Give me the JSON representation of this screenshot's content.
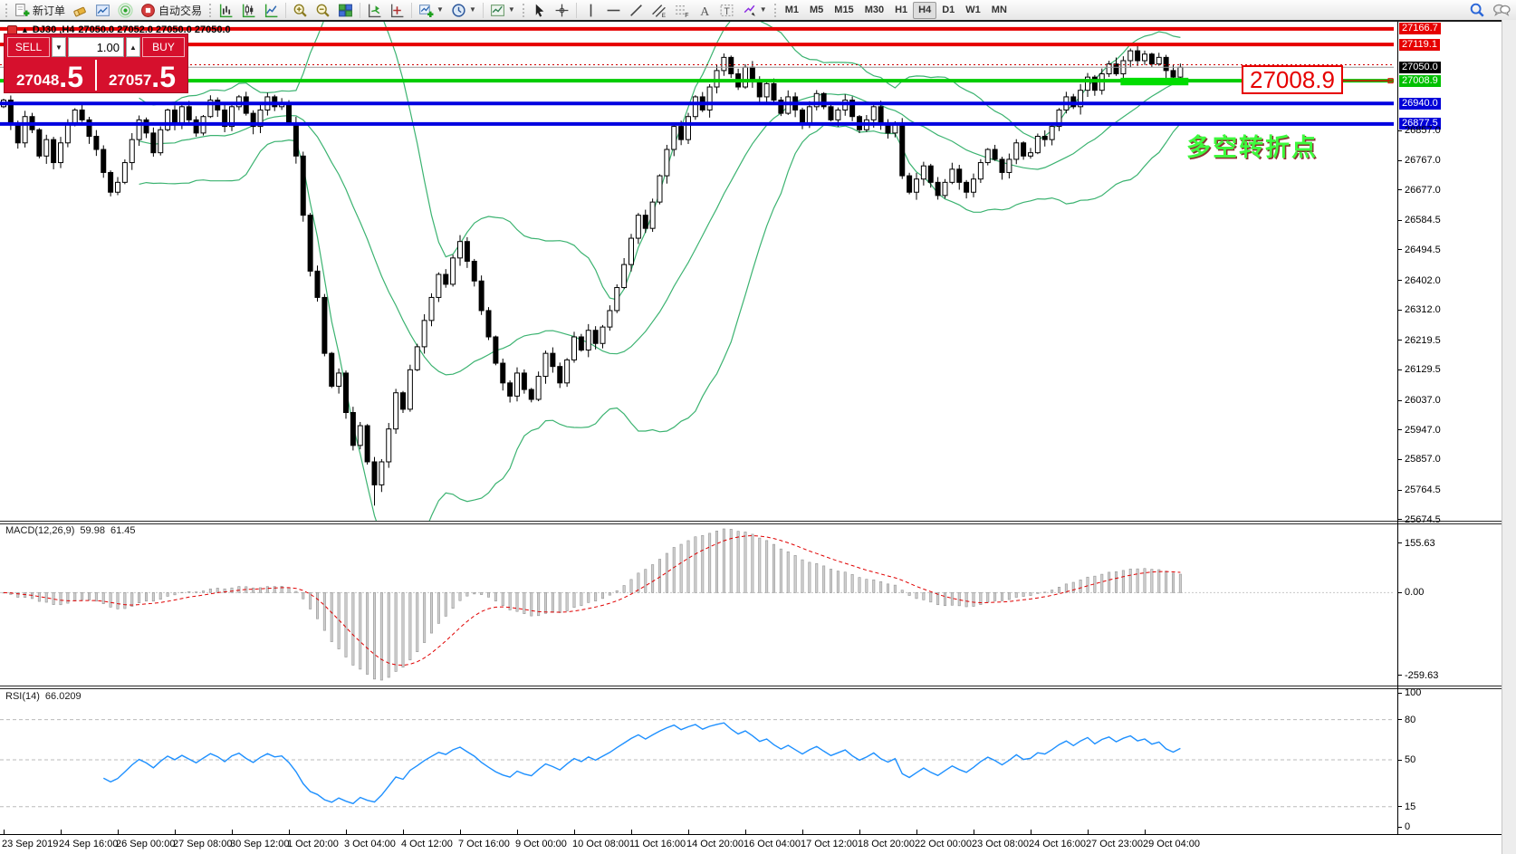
{
  "toolbar": {
    "new_order_label": "新订单",
    "autotrade_label": "自动交易",
    "timeframes": [
      "M1",
      "M5",
      "M15",
      "M30",
      "H1",
      "H4",
      "D1",
      "W1",
      "MN"
    ],
    "active_timeframe": "H4"
  },
  "chart": {
    "symbol_period": "DJ30 ,H4",
    "quotes": "27050.0 27052.0 27050.0 27050.0"
  },
  "order_panel": {
    "sell_label": "SELL",
    "buy_label": "BUY",
    "volume": "1.00",
    "sell_price": "27048",
    "sell_price_frac": ".5",
    "buy_price": "27057",
    "buy_price_frac": ".5"
  },
  "quote": {
    "last": "27050.0",
    "last_line_price": 27050.0,
    "ask_line_price": 27057.5
  },
  "price_axis": {
    "highlight_labels": [
      {
        "text": "27166.7",
        "price": 27166.7,
        "bg": "#e60000"
      },
      {
        "text": "27119.1",
        "price": 27119.1,
        "bg": "#e60000"
      },
      {
        "text": "27050.0",
        "price": 27050.0,
        "bg": "#000000"
      },
      {
        "text": "27008.9",
        "price": 27008.9,
        "bg": "#00c000"
      },
      {
        "text": "26940.0",
        "price": 26940.0,
        "bg": "#0000d8"
      },
      {
        "text": "26877.5",
        "price": 26877.5,
        "bg": "#0000d8"
      }
    ],
    "ticks": [
      {
        "text": "26857.0",
        "price": 26857.0
      },
      {
        "text": "26767.0",
        "price": 26767.0
      },
      {
        "text": "26677.0",
        "price": 26677.0
      },
      {
        "text": "26584.5",
        "price": 26584.5
      },
      {
        "text": "26494.5",
        "price": 26494.5
      },
      {
        "text": "26402.0",
        "price": 26402.0
      },
      {
        "text": "26312.0",
        "price": 26312.0
      },
      {
        "text": "26219.5",
        "price": 26219.5
      },
      {
        "text": "26129.5",
        "price": 26129.5
      },
      {
        "text": "26037.0",
        "price": 26037.0
      },
      {
        "text": "25947.0",
        "price": 25947.0
      },
      {
        "text": "25857.0",
        "price": 25857.0
      },
      {
        "text": "25764.5",
        "price": 25764.5
      },
      {
        "text": "25674.5",
        "price": 25674.5
      }
    ]
  },
  "hlines": [
    {
      "price": 27166.7,
      "color": "#e60000",
      "w": 4
    },
    {
      "price": 27119.1,
      "color": "#e60000",
      "w": 4
    },
    {
      "price": 27008.9,
      "color": "#00cc00",
      "w": 4
    },
    {
      "price": 26940.0,
      "color": "#0000e0",
      "w": 4
    },
    {
      "price": 26877.5,
      "color": "#0000e0",
      "w": 4
    }
  ],
  "annotations": {
    "price_callout": {
      "text": "27008.9",
      "price": 27008.9,
      "color": "#e60000"
    },
    "turning_point": {
      "text": "多空转折点",
      "color": "#3dfa3d"
    },
    "green_box": {
      "from_bar": 157,
      "to_bar": 166,
      "price_top": 27018,
      "price_bottom": 26995,
      "color": "#00dd00"
    }
  },
  "macd_panel": {
    "name": "MACD(12,26,9)",
    "value_main": "59.98",
    "value_signal": "61.45",
    "axis_labels": [
      {
        "text": "155.63",
        "value": 155.63
      },
      {
        "text": "0.00",
        "value": 0
      },
      {
        "text": "-259.63",
        "value": -259.63
      }
    ]
  },
  "rsi_panel": {
    "name": "RSI(14)",
    "value": "66.0209",
    "axis_labels": [
      {
        "text": "100",
        "value": 100
      },
      {
        "text": "80",
        "value": 80
      },
      {
        "text": "50",
        "value": 50
      },
      {
        "text": "15",
        "value": 15
      },
      {
        "text": "0",
        "value": 0
      }
    ],
    "levels": [
      80,
      50,
      15
    ]
  },
  "date_axis": [
    "23 Sep 2019",
    "24 Sep 16:00",
    "26 Sep 00:00",
    "27 Sep 08:00",
    "30 Sep 12:00",
    "1 Oct 20:00",
    "3 Oct 04:00",
    "4 Oct 12:00",
    "7 Oct 16:00",
    "9 Oct 00:00",
    "10 Oct 08:00",
    "11 Oct 16:00",
    "14 Oct 20:00",
    "16 Oct 04:00",
    "17 Oct 12:00",
    "18 Oct 20:00",
    "22 Oct 00:00",
    "23 Oct 08:00",
    "24 Oct 16:00",
    "27 Oct 23:00",
    "29 Oct 04:00"
  ],
  "chart_data": {
    "type": "candlestick",
    "symbol": "DJ30",
    "timeframe": "H4",
    "x_start": "23 Sep 2019",
    "x_end": "29 Oct 2019",
    "price_range": [
      25674.5,
      27188.0
    ],
    "closes": [
      26950,
      26880,
      26820,
      26900,
      26860,
      26780,
      26830,
      26760,
      26820,
      26880,
      26920,
      26890,
      26840,
      26800,
      26730,
      26670,
      26700,
      26760,
      26830,
      26890,
      26850,
      26790,
      26860,
      26920,
      26880,
      26930,
      26890,
      26850,
      26900,
      26950,
      26920,
      26870,
      26930,
      26960,
      26910,
      26870,
      26920,
      26960,
      26930,
      26940,
      26880,
      26780,
      26600,
      26430,
      26350,
      26180,
      26080,
      26120,
      26000,
      25900,
      25960,
      25850,
      25780,
      25850,
      25950,
      26060,
      26010,
      26130,
      26200,
      26280,
      26350,
      26420,
      26390,
      26470,
      26520,
      26460,
      26400,
      26310,
      26230,
      26150,
      26090,
      26050,
      26120,
      26070,
      26040,
      26110,
      26180,
      26140,
      26090,
      26160,
      26230,
      26190,
      26250,
      26210,
      26260,
      26310,
      26380,
      26450,
      26530,
      26600,
      26560,
      26640,
      26720,
      26800,
      26870,
      26830,
      26900,
      26960,
      26920,
      26990,
      27040,
      27080,
      27030,
      26990,
      27050,
      27010,
      26960,
      27000,
      26950,
      26910,
      26960,
      26920,
      26880,
      26930,
      26970,
      26930,
      26890,
      26920,
      26950,
      26900,
      26860,
      26890,
      26930,
      26880,
      26850,
      26880,
      26720,
      26670,
      26710,
      26750,
      26700,
      26660,
      26700,
      26740,
      26700,
      26670,
      26710,
      26760,
      26800,
      26770,
      26730,
      26770,
      26820,
      26780,
      26790,
      26840,
      26830,
      26870,
      26920,
      26960,
      26930,
      26980,
      27020,
      26980,
      27030,
      27060,
      27030,
      27070,
      27100,
      27070,
      27090,
      27060,
      27080,
      27040,
      27020,
      27050
    ],
    "long_wick_bar": 52,
    "overlays": {
      "bollinger": {
        "period": 20,
        "deviation": 1.8,
        "color": "#3CB371"
      }
    },
    "indicators": [
      {
        "name": "MACD",
        "params": [
          12,
          26,
          9
        ],
        "display": [
          59.98,
          61.45
        ]
      },
      {
        "name": "RSI",
        "params": [
          14
        ],
        "display": 66.0209
      }
    ]
  }
}
